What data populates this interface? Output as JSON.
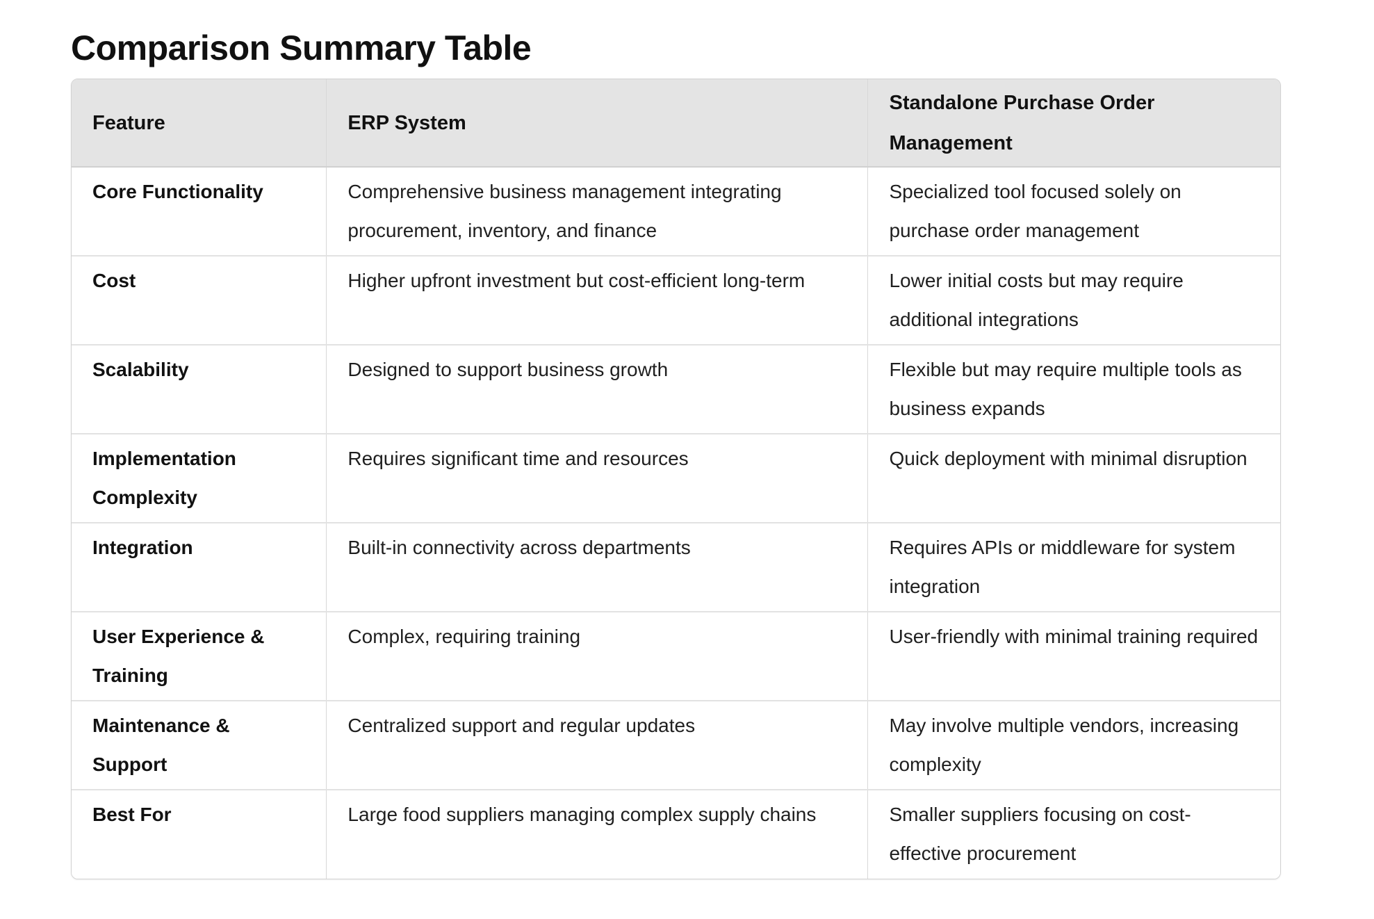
{
  "page_title": "Comparison Summary Table",
  "table": {
    "headers": [
      {
        "key": "feature",
        "label": "Feature"
      },
      {
        "key": "erp",
        "label": "ERP System"
      },
      {
        "key": "standalone",
        "label": "Standalone Purchase Order Management"
      }
    ],
    "rows": [
      {
        "feature": "Core Functionality",
        "erp": "Comprehensive business management integrating procurement, inventory, and finance",
        "standalone": "Specialized tool focused solely on purchase order management"
      },
      {
        "feature": "Cost",
        "erp": "Higher upfront investment but cost-efficient long-term",
        "standalone": "Lower initial costs but may require additional integrations"
      },
      {
        "feature": "Scalability",
        "erp": "Designed to support business growth",
        "standalone": "Flexible but may require multiple tools as business expands"
      },
      {
        "feature": "Implementation Complexity",
        "erp": "Requires significant time and resources",
        "standalone": "Quick deployment with minimal disruption"
      },
      {
        "feature": "Integration",
        "erp": "Built-in connectivity across departments",
        "standalone": "Requires APIs or middleware for system integration"
      },
      {
        "feature": "User Experience & Training",
        "erp": "Complex, requiring training",
        "standalone": "User-friendly with minimal training required"
      },
      {
        "feature": "Maintenance & Support",
        "erp": "Centralized support and regular updates",
        "standalone": "May involve multiple vendors, increasing complexity"
      },
      {
        "feature": "Best For",
        "erp": "Large food suppliers managing complex supply chains",
        "standalone": "Smaller suppliers focusing on cost-effective procurement"
      }
    ],
    "colors": {
      "header_bg": "#e4e4e4",
      "outer_border": "#d2d2d2",
      "column_divider": "#d8d8d8",
      "row_divider": "#e2e2e2",
      "header_text": "#111111",
      "body_text": "#1f1f1f"
    }
  }
}
